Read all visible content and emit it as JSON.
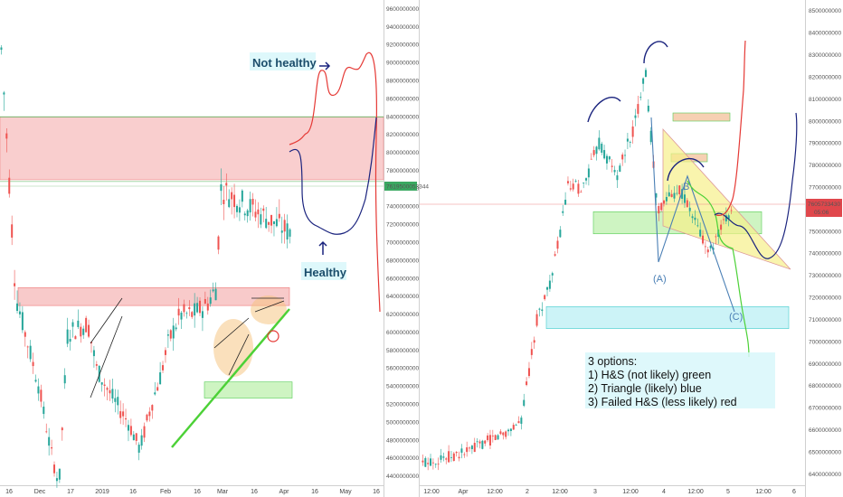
{
  "chart_data": [
    {
      "type": "candlestick",
      "title": "",
      "x_ticks": [
        "16",
        "Dec",
        "17",
        "2019",
        "16",
        "Feb",
        "16",
        "Mar",
        "16",
        "Apr",
        "16",
        "May",
        "16"
      ],
      "y_ticks": [
        "9600000000",
        "9400000000",
        "9200000000",
        "9000000000",
        "8800000000",
        "8600000000",
        "8400000000",
        "8200000000",
        "8000000000",
        "7800000000",
        "7600000000",
        "7400000000",
        "7200000000",
        "7000000000",
        "6800000000",
        "6600000000",
        "6400000000",
        "6200000000",
        "6000000000",
        "5800000000",
        "5600000000",
        "5400000000",
        "5200000000",
        "5000000000",
        "4800000000",
        "4600000000",
        "4400000000"
      ],
      "ylim": [
        4300000000,
        9700000000
      ],
      "price_label": "7619500053344",
      "zones": [
        {
          "kind": "resistance",
          "color": "#f4a6a6",
          "from": 7700000000,
          "to": 8400000000
        },
        {
          "kind": "resistance",
          "color": "#f4a6a6",
          "from": 6300000000,
          "to": 6500000000
        },
        {
          "kind": "support",
          "color": "#b9f0a8",
          "from": 5270000000,
          "to": 5450000000
        }
      ],
      "annotations": [
        {
          "text": "Not healthy",
          "color": "#1b4d6b"
        },
        {
          "text": "Healthy",
          "color": "#1b4d6b"
        }
      ]
    },
    {
      "type": "candlestick",
      "title": "",
      "x_ticks": [
        "12:00",
        "Apr",
        "12:00",
        "2",
        "12:00",
        "3",
        "12:00",
        "4",
        "12:00",
        "5",
        "12:00",
        "6"
      ],
      "y_ticks": [
        "8500000000",
        "8400000000",
        "8300000000",
        "8200000000",
        "8100000000",
        "8000000000",
        "7900000000",
        "7800000000",
        "7700000000",
        "7600000000",
        "7500000000",
        "7400000000",
        "7300000000",
        "7200000000",
        "7100000000",
        "7000000000",
        "6900000000",
        "6800000000",
        "6700000000",
        "6600000000",
        "6500000000",
        "6400000000"
      ],
      "ylim": [
        6350000000,
        8550000000
      ],
      "price_label": "7605733430",
      "price_label_sub": "05:06",
      "zones": [
        {
          "kind": "support",
          "color": "#b9f0a8",
          "from": 7490000000,
          "to": 7590000000
        },
        {
          "kind": "support",
          "color": "#bff0f5",
          "from": 7060000000,
          "to": 7160000000
        }
      ],
      "pattern_labels": [
        "(A)",
        "B",
        "(C)"
      ],
      "annotations": [
        {
          "text": "3 options:"
        },
        {
          "text": "1) H&S (not likely) green"
        },
        {
          "text": "2) Triangle (likely) blue"
        },
        {
          "text": "3) Failed H&S (less likely) red"
        }
      ]
    }
  ]
}
